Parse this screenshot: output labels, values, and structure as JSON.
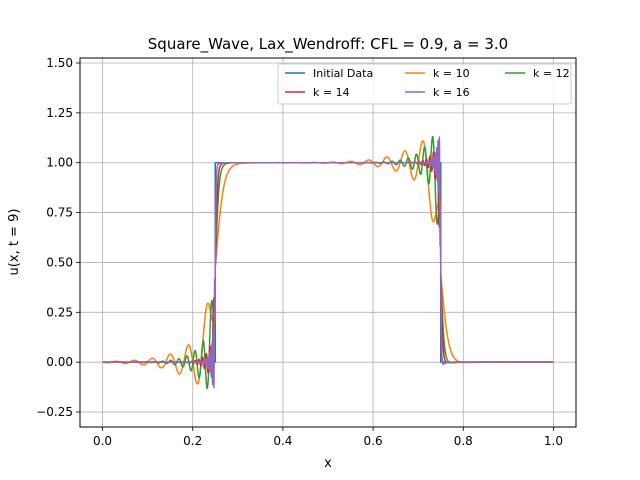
{
  "chart_data": {
    "type": "line",
    "title": "Square_Wave, Lax_Wendroff: CFL = 0.9, a = 3.0",
    "xlabel": "x",
    "ylabel": "u(x, t = 9)",
    "xlim": [
      -0.05,
      1.05
    ],
    "ylim": [
      -0.325,
      1.525
    ],
    "xticks": [
      "0.0",
      "0.2",
      "0.4",
      "0.6",
      "0.8",
      "1.0"
    ],
    "xtick_values": [
      0.0,
      0.2,
      0.4,
      0.6,
      0.8,
      1.0
    ],
    "yticks": [
      "−0.25",
      "0.00",
      "0.25",
      "0.50",
      "0.75",
      "1.00",
      "1.25",
      "1.50"
    ],
    "ytick_values": [
      -0.25,
      0.0,
      0.25,
      0.5,
      0.75,
      1.0,
      1.25,
      1.5
    ],
    "grid": true,
    "legend_placement": "top-right",
    "square_wave": {
      "low": 0.0,
      "high": 1.0,
      "left_edge": 0.25,
      "right_edge": 0.75
    },
    "series": [
      {
        "name": "Initial Data",
        "color": "#1f77b4",
        "k": null,
        "overshoot": 0.0,
        "ripple_wavelength": 0.0,
        "ripple_decay": 0.0,
        "extra_decay": 0.0,
        "smear_width": 0.0,
        "lw": 1.5
      },
      {
        "name": "k = 10",
        "color": "#ff7f0e",
        "k": 10,
        "overshoot": 0.25,
        "ripple_wavelength": 0.04,
        "ripple_decay": 0.055,
        "extra_decay": 0.02,
        "smear_width": 0.009,
        "lw": 1.5
      },
      {
        "name": "k = 12",
        "color": "#2ca02c",
        "k": 12,
        "overshoot": 0.26,
        "ripple_wavelength": 0.018,
        "ripple_decay": 0.03,
        "extra_decay": 0.01,
        "smear_width": 0.004,
        "lw": 1.5
      },
      {
        "name": "k = 14",
        "color": "#d62728",
        "k": 14,
        "overshoot": 0.16,
        "ripple_wavelength": 0.008,
        "ripple_decay": 0.015,
        "extra_decay": 0.006,
        "smear_width": 0.0025,
        "lw": 1.5
      },
      {
        "name": "k = 16",
        "color": "#9467bd",
        "k": 16,
        "overshoot": 0.27,
        "ripple_wavelength": 0.003,
        "ripple_decay": 0.007,
        "extra_decay": 0.004,
        "smear_width": 0.001,
        "lw": 1.5
      }
    ]
  }
}
